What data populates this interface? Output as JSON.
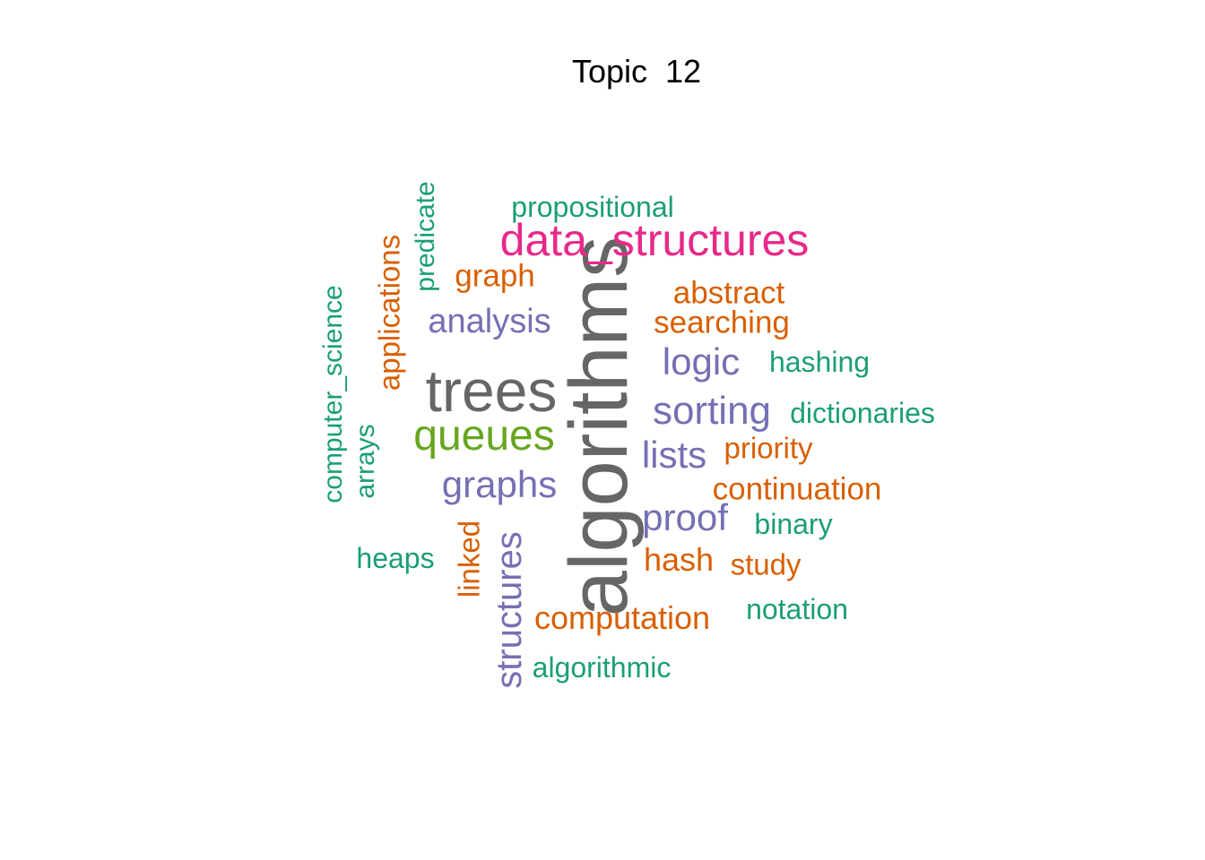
{
  "title": "Topic  12",
  "palette": {
    "teal": "#1b9e77",
    "orange": "#d95f02",
    "purple": "#7570b3",
    "magenta": "#e7298a",
    "green": "#66a61e",
    "gray": "#666666"
  },
  "words": [
    {
      "text": "algorithms",
      "color": "gray"
    },
    {
      "text": "trees",
      "color": "gray"
    },
    {
      "text": "data_structures",
      "color": "magenta"
    },
    {
      "text": "queues",
      "color": "green"
    },
    {
      "text": "sorting",
      "color": "purple"
    },
    {
      "text": "graphs",
      "color": "purple"
    },
    {
      "text": "logic",
      "color": "purple"
    },
    {
      "text": "lists",
      "color": "purple"
    },
    {
      "text": "proof",
      "color": "purple"
    },
    {
      "text": "analysis",
      "color": "purple"
    },
    {
      "text": "structures",
      "color": "purple"
    },
    {
      "text": "applications",
      "color": "orange"
    },
    {
      "text": "computation",
      "color": "orange"
    },
    {
      "text": "searching",
      "color": "orange"
    },
    {
      "text": "continuation",
      "color": "orange"
    },
    {
      "text": "abstract",
      "color": "orange"
    },
    {
      "text": "graph",
      "color": "orange"
    },
    {
      "text": "hash",
      "color": "orange"
    },
    {
      "text": "priority",
      "color": "orange"
    },
    {
      "text": "linked",
      "color": "orange"
    },
    {
      "text": "study",
      "color": "orange"
    },
    {
      "text": "computer_science",
      "color": "teal"
    },
    {
      "text": "predicate",
      "color": "teal"
    },
    {
      "text": "propositional",
      "color": "teal"
    },
    {
      "text": "dictionaries",
      "color": "teal"
    },
    {
      "text": "hashing",
      "color": "teal"
    },
    {
      "text": "binary",
      "color": "teal"
    },
    {
      "text": "notation",
      "color": "teal"
    },
    {
      "text": "arrays",
      "color": "teal"
    },
    {
      "text": "heaps",
      "color": "teal"
    },
    {
      "text": "algorithmic",
      "color": "teal"
    }
  ]
}
